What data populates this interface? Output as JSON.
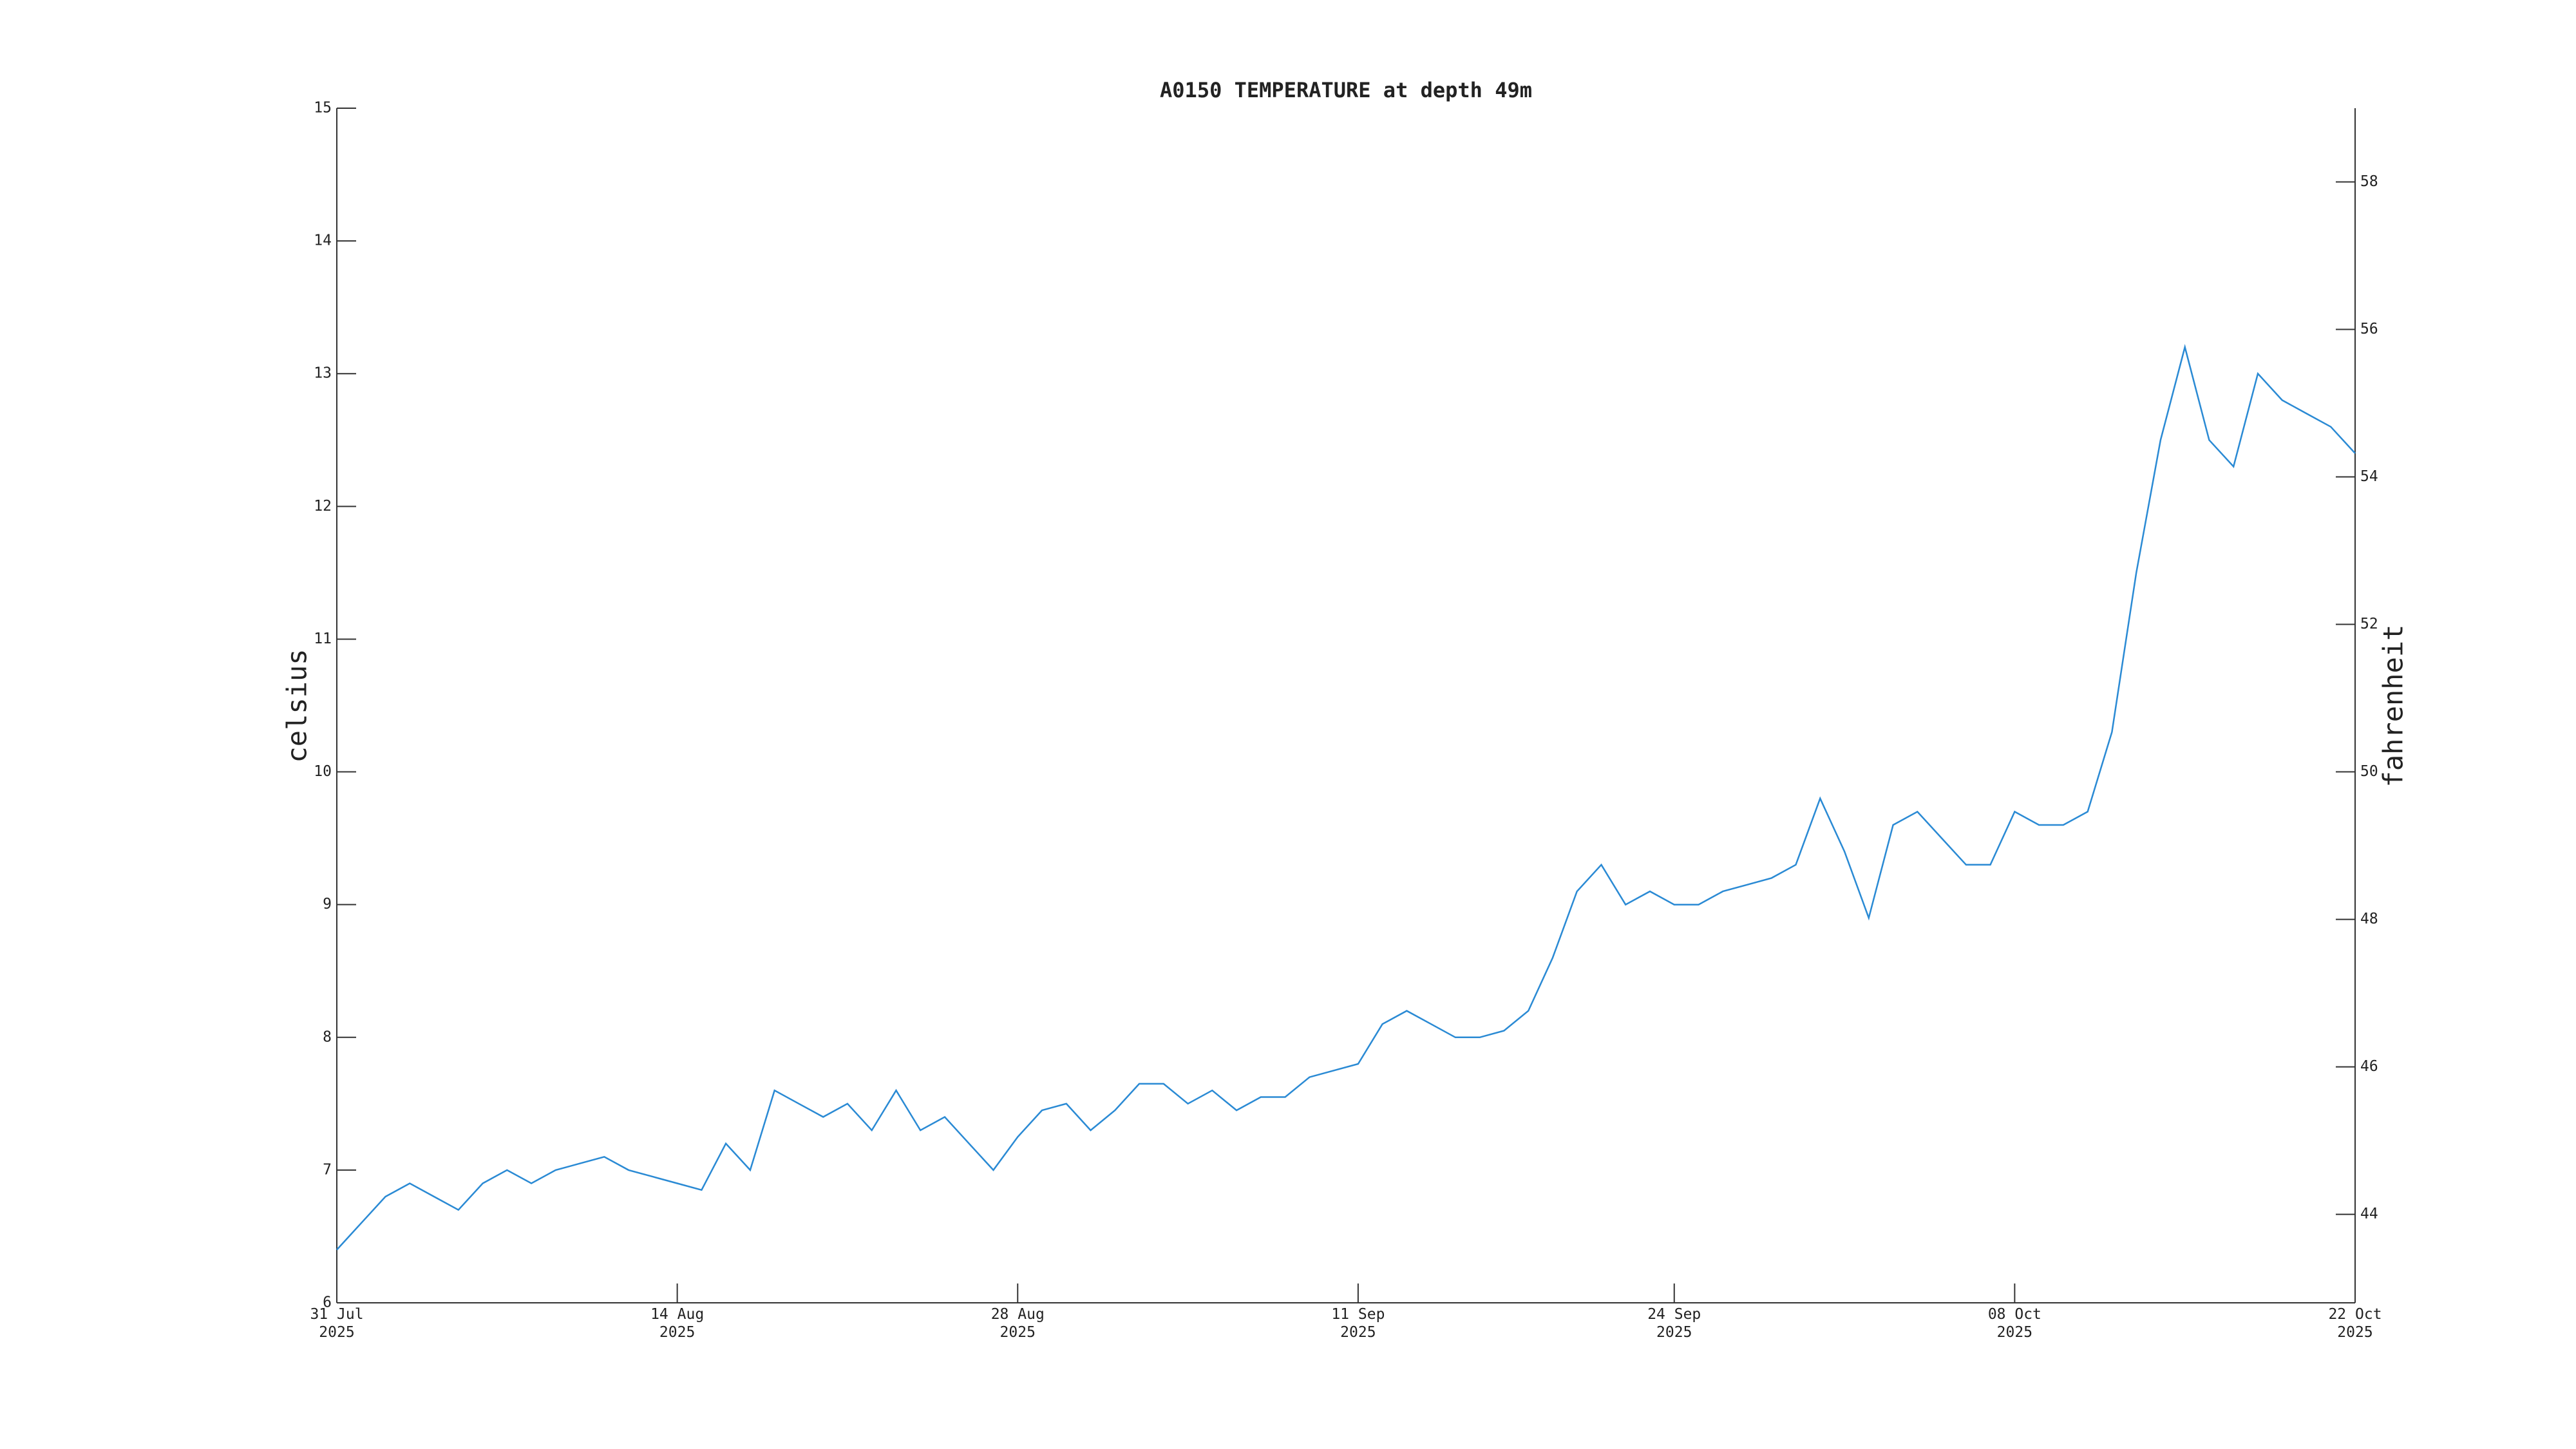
{
  "chart_data": {
    "type": "line",
    "title": "A0150 TEMPERATURE at depth 49m",
    "ylabel": "celsius",
    "y2label": "fahrenheit",
    "color": "#2a8ad4",
    "x": [
      "2025-07-31",
      "2025-08-01",
      "2025-08-02",
      "2025-08-03",
      "2025-08-04",
      "2025-08-05",
      "2025-08-06",
      "2025-08-07",
      "2025-08-08",
      "2025-08-09",
      "2025-08-10",
      "2025-08-11",
      "2025-08-12",
      "2025-08-13",
      "2025-08-14",
      "2025-08-15",
      "2025-08-16",
      "2025-08-17",
      "2025-08-18",
      "2025-08-19",
      "2025-08-20",
      "2025-08-21",
      "2025-08-22",
      "2025-08-23",
      "2025-08-24",
      "2025-08-25",
      "2025-08-26",
      "2025-08-27",
      "2025-08-28",
      "2025-08-29",
      "2025-08-30",
      "2025-08-31",
      "2025-09-01",
      "2025-09-02",
      "2025-09-03",
      "2025-09-04",
      "2025-09-05",
      "2025-09-06",
      "2025-09-07",
      "2025-09-08",
      "2025-09-09",
      "2025-09-10",
      "2025-09-11",
      "2025-09-12",
      "2025-09-13",
      "2025-09-14",
      "2025-09-15",
      "2025-09-16",
      "2025-09-17",
      "2025-09-18",
      "2025-09-19",
      "2025-09-20",
      "2025-09-21",
      "2025-09-22",
      "2025-09-23",
      "2025-09-24",
      "2025-09-25",
      "2025-09-26",
      "2025-09-27",
      "2025-09-28",
      "2025-09-29",
      "2025-09-30",
      "2025-10-01",
      "2025-10-02",
      "2025-10-03",
      "2025-10-04",
      "2025-10-05",
      "2025-10-06",
      "2025-10-07",
      "2025-10-08",
      "2025-10-09",
      "2025-10-10",
      "2025-10-11",
      "2025-10-12",
      "2025-10-13",
      "2025-10-14",
      "2025-10-15",
      "2025-10-16",
      "2025-10-17",
      "2025-10-18",
      "2025-10-19",
      "2025-10-20",
      "2025-10-21",
      "2025-10-22"
    ],
    "values": [
      6.4,
      6.6,
      6.8,
      6.9,
      6.8,
      6.7,
      6.9,
      7.0,
      6.9,
      7.0,
      7.05,
      7.1,
      7.0,
      6.95,
      6.9,
      6.85,
      7.2,
      7.0,
      7.6,
      7.5,
      7.4,
      7.5,
      7.3,
      7.6,
      7.3,
      7.4,
      7.2,
      7.0,
      7.25,
      7.45,
      7.5,
      7.3,
      7.45,
      7.65,
      7.65,
      7.5,
      7.6,
      7.45,
      7.55,
      7.55,
      7.7,
      7.75,
      7.8,
      8.1,
      8.2,
      8.1,
      8.0,
      8.0,
      8.05,
      8.2,
      8.6,
      9.1,
      9.3,
      9.0,
      9.1,
      9.0,
      9.0,
      9.1,
      9.15,
      9.2,
      9.3,
      9.8,
      9.4,
      8.9,
      9.6,
      9.7,
      9.5,
      9.3,
      9.3,
      9.7,
      9.6,
      9.6,
      9.7,
      10.3,
      11.5,
      12.5,
      13.2,
      12.5,
      12.3,
      13.0,
      12.8,
      12.7,
      12.6,
      12.4
    ],
    "xlim": [
      "2025-07-31",
      "2025-10-22"
    ],
    "xticks": [
      {
        "value": "2025-07-31",
        "label": "31 Jul\n2025"
      },
      {
        "value": "2025-08-14",
        "label": "14 Aug\n2025"
      },
      {
        "value": "2025-08-28",
        "label": "28 Aug\n2025"
      },
      {
        "value": "2025-09-11",
        "label": "11 Sep\n2025"
      },
      {
        "value": "2025-09-24",
        "label": "24 Sep\n2025"
      },
      {
        "value": "2025-10-08",
        "label": "08 Oct\n2025"
      },
      {
        "value": "2025-10-22",
        "label": "22 Oct\n2025"
      }
    ],
    "ylim": [
      6,
      15
    ],
    "yticks": [
      6,
      7,
      8,
      9,
      10,
      11,
      12,
      13,
      14,
      15
    ],
    "y2lim": [
      42.8,
      59
    ],
    "y2ticks": [
      44,
      46,
      48,
      50,
      52,
      54,
      56,
      58
    ]
  }
}
